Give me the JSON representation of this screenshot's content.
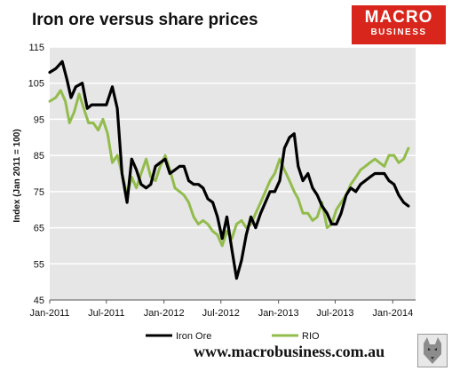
{
  "header": {
    "title": "Iron ore versus share prices",
    "logo_line1": "MACRO",
    "logo_line2": "BUSINESS",
    "logo_color": "#d9261c"
  },
  "footer": {
    "url": "www.macrobusiness.com.au",
    "wolf_icon": "wolf-logo-icon"
  },
  "chart_data": {
    "type": "line",
    "title": "Iron ore versus share prices",
    "ylabel": "Index (Jan 2011 = 100)",
    "xlabel": "",
    "ylim": [
      45,
      115
    ],
    "yticks": [
      45,
      55,
      65,
      75,
      85,
      95,
      105,
      115
    ],
    "xlim": [
      "2011-01-01",
      "2014-03-15"
    ],
    "xticks": [
      {
        "date": "2011-01-01",
        "label": "Jan-2011"
      },
      {
        "date": "2011-07-01",
        "label": "Jul-2011"
      },
      {
        "date": "2012-01-01",
        "label": "Jan-2012"
      },
      {
        "date": "2012-07-01",
        "label": "Jul-2012"
      },
      {
        "date": "2013-01-01",
        "label": "Jan-2013"
      },
      {
        "date": "2013-07-01",
        "label": "Jul-2013"
      },
      {
        "date": "2014-01-01",
        "label": "Jan-2014"
      }
    ],
    "grid": true,
    "legend": "bottom",
    "series": [
      {
        "name": "Iron Ore",
        "color": "#000000",
        "x": [
          "2011-01-01",
          "2011-01-20",
          "2011-02-10",
          "2011-02-25",
          "2011-03-10",
          "2011-03-25",
          "2011-04-15",
          "2011-05-01",
          "2011-05-15",
          "2011-06-01",
          "2011-06-15",
          "2011-07-01",
          "2011-07-20",
          "2011-08-05",
          "2011-08-20",
          "2011-09-05",
          "2011-09-20",
          "2011-10-05",
          "2011-10-20",
          "2011-11-05",
          "2011-11-20",
          "2011-12-05",
          "2011-12-20",
          "2012-01-05",
          "2012-01-20",
          "2012-02-05",
          "2012-02-20",
          "2012-03-05",
          "2012-03-20",
          "2012-04-05",
          "2012-04-20",
          "2012-05-05",
          "2012-05-20",
          "2012-06-05",
          "2012-06-20",
          "2012-07-05",
          "2012-07-20",
          "2012-08-05",
          "2012-08-20",
          "2012-09-05",
          "2012-09-20",
          "2012-10-05",
          "2012-10-20",
          "2012-11-05",
          "2012-11-20",
          "2012-12-05",
          "2012-12-20",
          "2013-01-05",
          "2013-01-20",
          "2013-02-05",
          "2013-02-20",
          "2013-03-05",
          "2013-03-20",
          "2013-04-05",
          "2013-04-20",
          "2013-05-05",
          "2013-05-20",
          "2013-06-05",
          "2013-06-20",
          "2013-07-05",
          "2013-07-20",
          "2013-08-05",
          "2013-08-20",
          "2013-09-05",
          "2013-09-20",
          "2013-10-05",
          "2013-10-20",
          "2013-11-05",
          "2013-11-20",
          "2013-12-05",
          "2013-12-20",
          "2014-01-05",
          "2014-01-20",
          "2014-02-05",
          "2014-02-20"
        ],
        "values": [
          108,
          109,
          111,
          106,
          101,
          104,
          105,
          98,
          99,
          99,
          99,
          99,
          104,
          98,
          80,
          72,
          84,
          81,
          77,
          76,
          77,
          82,
          83,
          84,
          80,
          81,
          82,
          82,
          78,
          77,
          77,
          76,
          73,
          72,
          68,
          62,
          68,
          59,
          51,
          56,
          63,
          68,
          65,
          69,
          72,
          75,
          75,
          78,
          87,
          90,
          91,
          82,
          78,
          80,
          76,
          74,
          71,
          69,
          66,
          66,
          69,
          74,
          76,
          75,
          77,
          78,
          79,
          80,
          80,
          80,
          78,
          77,
          74,
          72,
          71
        ]
      },
      {
        "name": "RIO",
        "color": "#92bc4c",
        "x": [
          "2011-01-01",
          "2011-01-20",
          "2011-02-05",
          "2011-02-20",
          "2011-03-05",
          "2011-03-20",
          "2011-04-05",
          "2011-04-20",
          "2011-05-05",
          "2011-05-20",
          "2011-06-05",
          "2011-06-20",
          "2011-07-05",
          "2011-07-20",
          "2011-08-05",
          "2011-08-20",
          "2011-09-05",
          "2011-09-20",
          "2011-10-05",
          "2011-10-20",
          "2011-11-05",
          "2011-11-20",
          "2011-12-05",
          "2011-12-20",
          "2012-01-05",
          "2012-01-20",
          "2012-02-05",
          "2012-02-20",
          "2012-03-05",
          "2012-03-20",
          "2012-04-05",
          "2012-04-20",
          "2012-05-05",
          "2012-05-20",
          "2012-06-05",
          "2012-06-20",
          "2012-07-05",
          "2012-07-20",
          "2012-08-05",
          "2012-08-20",
          "2012-09-05",
          "2012-09-20",
          "2012-10-05",
          "2012-10-20",
          "2012-11-05",
          "2012-11-20",
          "2012-12-05",
          "2012-12-20",
          "2013-01-05",
          "2013-01-20",
          "2013-02-05",
          "2013-02-20",
          "2013-03-05",
          "2013-03-20",
          "2013-04-05",
          "2013-04-20",
          "2013-05-05",
          "2013-05-20",
          "2013-06-05",
          "2013-06-20",
          "2013-07-05",
          "2013-07-20",
          "2013-08-05",
          "2013-08-20",
          "2013-09-05",
          "2013-09-20",
          "2013-10-05",
          "2013-10-20",
          "2013-11-05",
          "2013-11-20",
          "2013-12-05",
          "2013-12-20",
          "2014-01-05",
          "2014-01-20",
          "2014-02-05",
          "2014-02-20"
        ],
        "values": [
          100,
          101,
          103,
          100,
          94,
          97,
          102,
          98,
          94,
          94,
          92,
          95,
          91,
          83,
          85,
          80,
          74,
          79,
          76,
          80,
          84,
          79,
          78,
          82,
          85,
          81,
          76,
          75,
          74,
          72,
          68,
          66,
          67,
          66,
          64,
          63,
          60,
          64,
          62,
          66,
          67,
          65,
          66,
          69,
          72,
          75,
          78,
          80,
          84,
          81,
          78,
          75,
          73,
          69,
          69,
          67,
          68,
          72,
          65,
          66,
          70,
          72,
          74,
          77,
          79,
          81,
          82,
          83,
          84,
          83,
          82,
          85,
          85,
          83,
          84,
          87
        ]
      }
    ]
  }
}
